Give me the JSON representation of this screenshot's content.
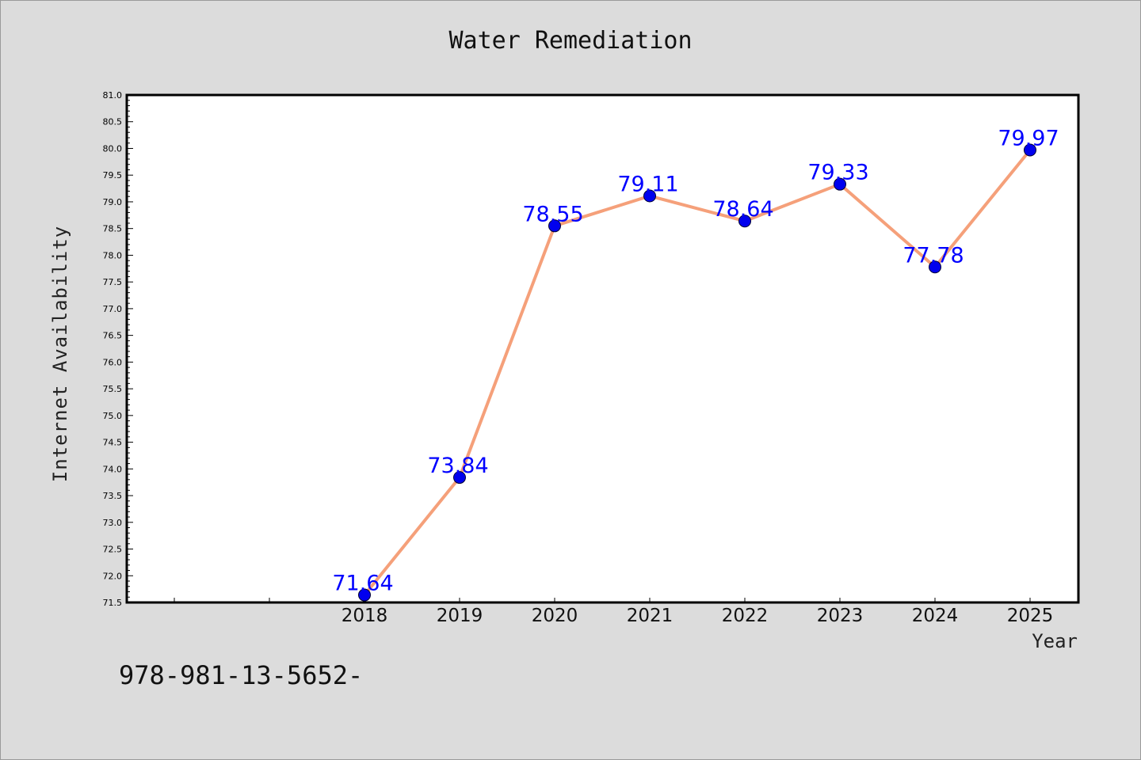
{
  "chart_data": {
    "type": "line",
    "title": "Water Remediation",
    "xlabel": "Year",
    "ylabel": "Internet Availability",
    "categories": [
      "2018",
      "2019",
      "2020",
      "2021",
      "2022",
      "2023",
      "2024",
      "2025"
    ],
    "series": [
      {
        "values": [
          71.64,
          73.84,
          78.55,
          79.11,
          78.64,
          79.33,
          77.78,
          79.97
        ],
        "data_labels": [
          "71.64",
          "73.84",
          "78.55",
          "79.11",
          "78.64",
          "79.33",
          "77.78",
          "79.97"
        ],
        "line_color": "#f5a07a",
        "marker_color": "#0000ee",
        "label_color": "#0000ff"
      }
    ],
    "ylim": [
      71.5,
      81.0
    ],
    "yticks": [
      "71.5",
      "72.0",
      "72.5",
      "73.0",
      "73.5",
      "74.0",
      "74.5",
      "75.0",
      "75.5",
      "76.0",
      "76.5",
      "77.0",
      "77.5",
      "78.0",
      "78.5",
      "79.0",
      "79.5",
      "80.0",
      "80.5",
      "81.0"
    ],
    "grid": false,
    "legend": "none"
  },
  "footer": {
    "code": "978-981-13-5652-"
  },
  "colors": {
    "background": "#dcdcdc",
    "plot_area": "#ffffff"
  }
}
